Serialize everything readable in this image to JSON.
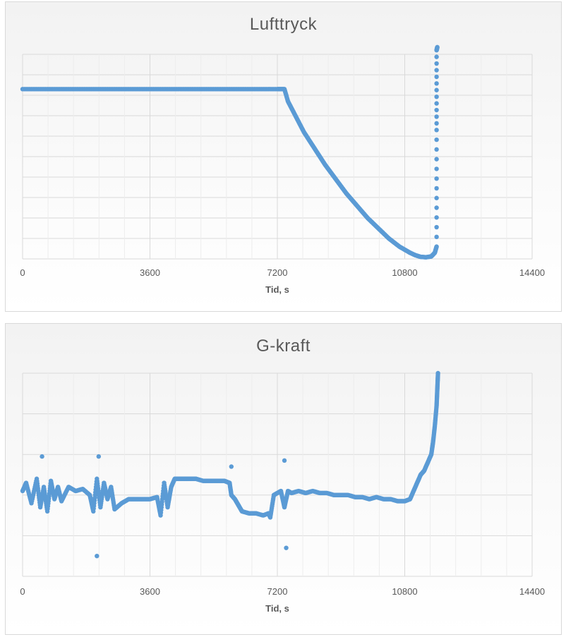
{
  "chart_data": [
    {
      "type": "scatter",
      "title": "Lufttryck",
      "xlabel": "Tid, s",
      "ylabel": "",
      "xlim": [
        0,
        14400
      ],
      "ylim": [
        0,
        10
      ],
      "x_ticks": [
        "0",
        "3600",
        "7200",
        "10800",
        "14400"
      ],
      "y_tick_labels_shown": false,
      "grid": true,
      "color": "#5b9bd5",
      "series": [
        {
          "points": [
            [
              0,
              8.3
            ],
            [
              600,
              8.3
            ],
            [
              1200,
              8.3
            ],
            [
              1800,
              8.3
            ],
            [
              2400,
              8.3
            ],
            [
              3000,
              8.3
            ],
            [
              3600,
              8.3
            ],
            [
              4200,
              8.3
            ],
            [
              4800,
              8.3
            ],
            [
              5400,
              8.3
            ],
            [
              6000,
              8.3
            ],
            [
              6600,
              8.3
            ],
            [
              7200,
              8.3
            ],
            [
              7400,
              8.3
            ],
            [
              7500,
              7.7
            ],
            [
              7650,
              7.2
            ],
            [
              7800,
              6.7
            ],
            [
              7950,
              6.2
            ],
            [
              8100,
              5.8
            ],
            [
              8250,
              5.4
            ],
            [
              8400,
              5.0
            ],
            [
              8550,
              4.6
            ],
            [
              8700,
              4.25
            ],
            [
              8850,
              3.9
            ],
            [
              9000,
              3.55
            ],
            [
              9150,
              3.2
            ],
            [
              9300,
              2.9
            ],
            [
              9450,
              2.6
            ],
            [
              9600,
              2.3
            ],
            [
              9750,
              2.0
            ],
            [
              9900,
              1.75
            ],
            [
              10050,
              1.5
            ],
            [
              10200,
              1.25
            ],
            [
              10350,
              1.0
            ],
            [
              10500,
              0.8
            ],
            [
              10650,
              0.6
            ],
            [
              10800,
              0.45
            ],
            [
              10950,
              0.3
            ],
            [
              11100,
              0.18
            ],
            [
              11250,
              0.1
            ],
            [
              11400,
              0.08
            ],
            [
              11550,
              0.12
            ],
            [
              11650,
              0.3
            ],
            [
              11700,
              0.6
            ],
            [
              11700,
              6.3
            ],
            [
              11700,
              10.2
            ],
            [
              11720,
              10.35
            ]
          ]
        }
      ]
    },
    {
      "type": "scatter",
      "title": "G-kraft",
      "xlabel": "Tid, s",
      "ylabel": "",
      "xlim": [
        0,
        14400
      ],
      "ylim": [
        0,
        5
      ],
      "x_ticks": [
        "0",
        "3600",
        "7200",
        "10800",
        "14400"
      ],
      "y_tick_labels_shown": false,
      "grid": true,
      "color": "#5b9bd5",
      "series": [
        {
          "points": [
            [
              0,
              2.1
            ],
            [
              100,
              2.3
            ],
            [
              250,
              1.8
            ],
            [
              400,
              2.4
            ],
            [
              500,
              1.7
            ],
            [
              600,
              2.2
            ],
            [
              700,
              1.6
            ],
            [
              800,
              2.35
            ],
            [
              900,
              1.9
            ],
            [
              1000,
              2.2
            ],
            [
              1100,
              1.85
            ],
            [
              1300,
              2.2
            ],
            [
              1500,
              2.1
            ],
            [
              1700,
              2.15
            ],
            [
              1900,
              2.0
            ],
            [
              2000,
              1.6
            ],
            [
              2100,
              2.4
            ],
            [
              2200,
              1.7
            ],
            [
              2300,
              2.3
            ],
            [
              2400,
              1.9
            ],
            [
              2500,
              2.2
            ],
            [
              2600,
              1.65
            ],
            [
              2800,
              1.8
            ],
            [
              3000,
              1.9
            ],
            [
              3200,
              1.9
            ],
            [
              3400,
              1.9
            ],
            [
              3600,
              1.9
            ],
            [
              3800,
              1.95
            ],
            [
              3900,
              1.5
            ],
            [
              4000,
              2.3
            ],
            [
              4100,
              1.7
            ],
            [
              4200,
              2.2
            ],
            [
              4300,
              2.4
            ],
            [
              4500,
              2.4
            ],
            [
              4700,
              2.4
            ],
            [
              4900,
              2.4
            ],
            [
              5100,
              2.35
            ],
            [
              5300,
              2.35
            ],
            [
              5500,
              2.35
            ],
            [
              5700,
              2.35
            ],
            [
              5850,
              2.3
            ],
            [
              5900,
              2.0
            ],
            [
              6000,
              1.9
            ],
            [
              6100,
              1.75
            ],
            [
              6200,
              1.6
            ],
            [
              6400,
              1.55
            ],
            [
              6600,
              1.55
            ],
            [
              6800,
              1.5
            ],
            [
              6950,
              1.55
            ],
            [
              7000,
              1.45
            ],
            [
              7100,
              2.0
            ],
            [
              7300,
              2.1
            ],
            [
              7400,
              1.7
            ],
            [
              7500,
              2.1
            ],
            [
              7600,
              2.05
            ],
            [
              7800,
              2.1
            ],
            [
              8000,
              2.05
            ],
            [
              8200,
              2.1
            ],
            [
              8400,
              2.05
            ],
            [
              8600,
              2.05
            ],
            [
              8800,
              2.0
            ],
            [
              9000,
              2.0
            ],
            [
              9200,
              2.0
            ],
            [
              9400,
              1.95
            ],
            [
              9600,
              1.95
            ],
            [
              9800,
              1.9
            ],
            [
              10000,
              1.95
            ],
            [
              10200,
              1.9
            ],
            [
              10400,
              1.9
            ],
            [
              10600,
              1.85
            ],
            [
              10800,
              1.85
            ],
            [
              10950,
              1.9
            ],
            [
              11050,
              2.1
            ],
            [
              11150,
              2.3
            ],
            [
              11250,
              2.5
            ],
            [
              11350,
              2.6
            ],
            [
              11450,
              2.8
            ],
            [
              11550,
              3.0
            ],
            [
              11600,
              3.3
            ],
            [
              11650,
              3.7
            ],
            [
              11700,
              4.2
            ],
            [
              11720,
              4.6
            ],
            [
              11740,
              5.0
            ],
            [
              2150,
              2.95
            ],
            [
              2100,
              0.5
            ],
            [
              7450,
              0.7
            ],
            [
              550,
              2.95
            ],
            [
              7400,
              2.85
            ],
            [
              5900,
              2.7
            ]
          ]
        }
      ]
    }
  ]
}
